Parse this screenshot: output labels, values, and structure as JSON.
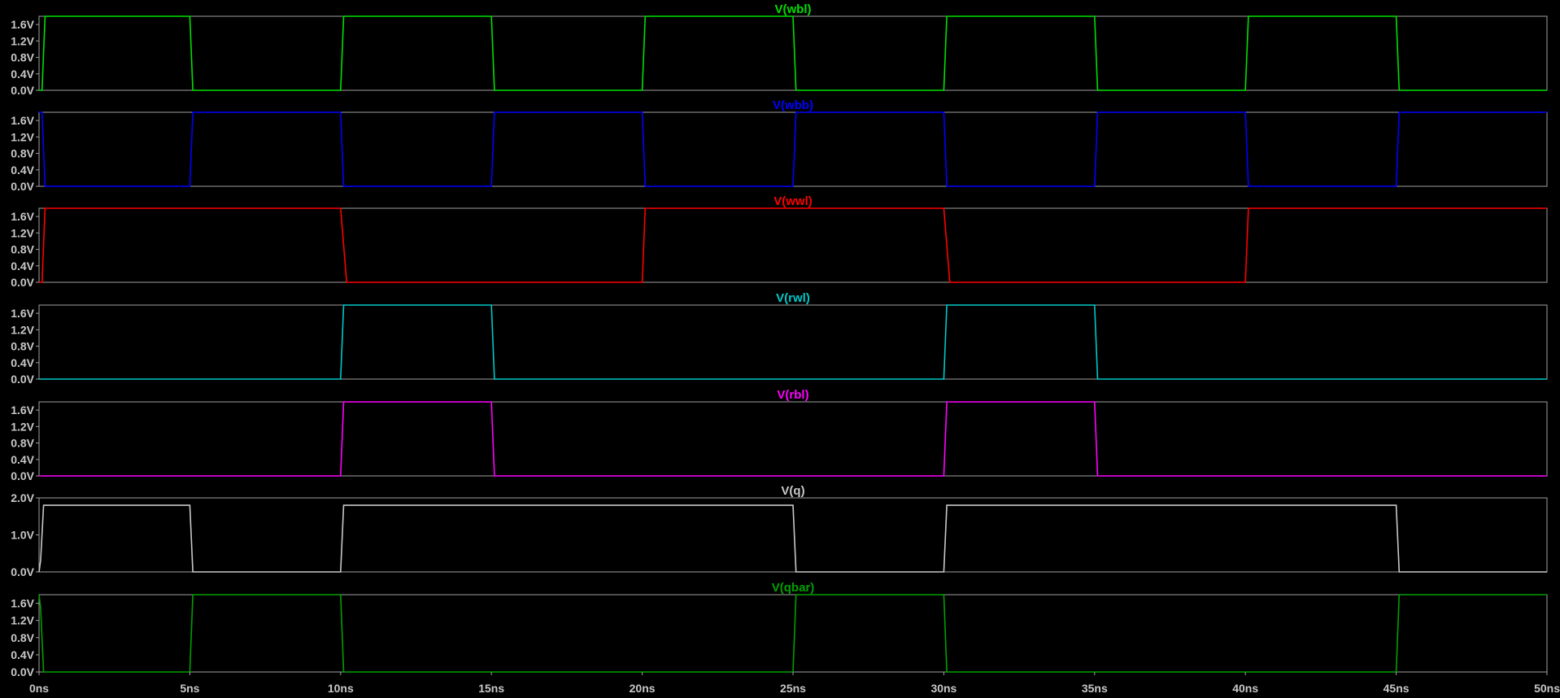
{
  "chart_data": {
    "type": "line",
    "x_unit": "ns",
    "xlim": [
      0,
      50
    ],
    "x_ticks": [
      "0ns",
      "5ns",
      "10ns",
      "15ns",
      "20ns",
      "25ns",
      "30ns",
      "35ns",
      "40ns",
      "45ns",
      "50ns"
    ],
    "panels": [
      {
        "name": "V(wbl)",
        "color": "#00e000",
        "ylim": [
          0,
          1.8
        ],
        "y_ticks": [
          "0.0V",
          "0.4V",
          "0.8V",
          "1.2V",
          "1.6V"
        ],
        "y_tick_values": [
          0,
          0.4,
          0.8,
          1.2,
          1.6
        ],
        "x": [
          0,
          0.1,
          0.2,
          5.0,
          5.1,
          10.0,
          10.1,
          15.0,
          15.1,
          20.0,
          20.1,
          25.0,
          25.1,
          30.0,
          30.1,
          35.0,
          35.1,
          40.0,
          40.1,
          45.0,
          45.1,
          50
        ],
        "y": [
          0,
          0,
          1.8,
          1.8,
          0,
          0,
          1.8,
          1.8,
          0,
          0,
          1.8,
          1.8,
          0,
          0,
          1.8,
          1.8,
          0,
          0,
          1.8,
          1.8,
          0,
          0
        ]
      },
      {
        "name": "V(wbb)",
        "color": "#0000ff",
        "ylim": [
          0,
          1.8
        ],
        "y_ticks": [
          "0.0V",
          "0.4V",
          "0.8V",
          "1.2V",
          "1.6V"
        ],
        "y_tick_values": [
          0,
          0.4,
          0.8,
          1.2,
          1.6
        ],
        "x": [
          0,
          0.1,
          0.2,
          5.0,
          5.1,
          10.0,
          10.1,
          15.0,
          15.1,
          20.0,
          20.1,
          25.0,
          25.1,
          30.0,
          30.1,
          35.0,
          35.1,
          40.0,
          40.1,
          45.0,
          45.1,
          50
        ],
        "y": [
          1.8,
          1.8,
          0,
          0,
          1.8,
          1.8,
          0,
          0,
          1.8,
          1.8,
          0,
          0,
          1.8,
          1.8,
          0,
          0,
          1.8,
          1.8,
          0,
          0,
          1.8,
          1.8
        ]
      },
      {
        "name": "V(wwl)",
        "color": "#ff0000",
        "ylim": [
          0,
          1.8
        ],
        "y_ticks": [
          "0.0V",
          "0.4V",
          "0.8V",
          "1.2V",
          "1.6V"
        ],
        "y_tick_values": [
          0,
          0.4,
          0.8,
          1.2,
          1.6
        ],
        "x": [
          0,
          0.1,
          0.2,
          10.0,
          10.2,
          20.0,
          20.1,
          30.0,
          30.2,
          40.0,
          40.1,
          50
        ],
        "y": [
          0,
          0,
          1.8,
          1.8,
          0,
          0,
          1.8,
          1.8,
          0,
          0,
          1.8,
          1.8
        ]
      },
      {
        "name": "V(rwl)",
        "color": "#00c8c8",
        "ylim": [
          0,
          1.8
        ],
        "y_ticks": [
          "0.0V",
          "0.4V",
          "0.8V",
          "1.2V",
          "1.6V"
        ],
        "y_tick_values": [
          0,
          0.4,
          0.8,
          1.2,
          1.6
        ],
        "x": [
          0,
          10.0,
          10.1,
          15.0,
          15.1,
          30.0,
          30.1,
          35.0,
          35.1,
          50
        ],
        "y": [
          0,
          0,
          1.8,
          1.8,
          0,
          0,
          1.8,
          1.8,
          0,
          0
        ]
      },
      {
        "name": "V(rbl)",
        "color": "#ff00ff",
        "ylim": [
          0,
          1.8
        ],
        "y_ticks": [
          "0.0V",
          "0.4V",
          "0.8V",
          "1.2V",
          "1.6V"
        ],
        "y_tick_values": [
          0,
          0.4,
          0.8,
          1.2,
          1.6
        ],
        "x": [
          0,
          10.0,
          10.1,
          15.0,
          15.1,
          30.0,
          30.1,
          35.0,
          35.1,
          50
        ],
        "y": [
          0,
          0,
          1.8,
          1.8,
          0,
          0,
          1.8,
          1.8,
          0,
          0
        ]
      },
      {
        "name": "V(q)",
        "color": "#c8c8c8",
        "ylim": [
          0,
          2.0
        ],
        "y_ticks": [
          "0.0V",
          "1.0V",
          "2.0V"
        ],
        "y_tick_values": [
          0,
          1.0,
          2.0
        ],
        "x": [
          0,
          0.05,
          0.15,
          5.0,
          5.1,
          10.0,
          10.1,
          25.0,
          25.1,
          30.0,
          30.1,
          45.0,
          45.1,
          50
        ],
        "y": [
          0,
          0.3,
          1.8,
          1.8,
          0,
          0,
          1.8,
          1.8,
          0,
          0,
          1.8,
          1.8,
          0,
          0
        ]
      },
      {
        "name": "V(qbar)",
        "color": "#00a000",
        "ylim": [
          0,
          1.8
        ],
        "y_ticks": [
          "0.0V",
          "0.4V",
          "0.8V",
          "1.2V",
          "1.6V"
        ],
        "y_tick_values": [
          0,
          0.4,
          0.8,
          1.2,
          1.6
        ],
        "x": [
          0,
          0.05,
          0.15,
          5.0,
          5.1,
          10.0,
          10.1,
          25.0,
          25.1,
          30.0,
          30.1,
          45.0,
          45.1,
          50
        ],
        "y": [
          1.8,
          1.5,
          0,
          0,
          1.8,
          1.8,
          0,
          0,
          1.8,
          1.8,
          0,
          0,
          1.8,
          1.8
        ]
      }
    ]
  }
}
